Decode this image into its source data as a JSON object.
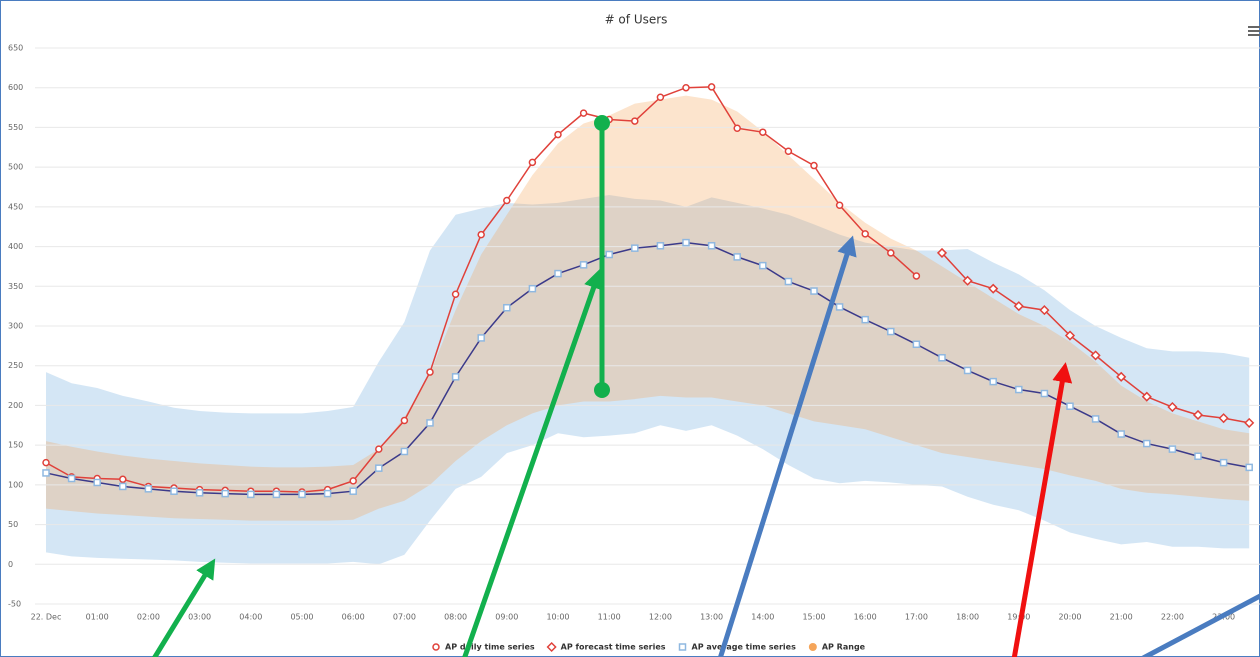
{
  "chart_data": {
    "type": "line",
    "title": "# of Users",
    "categories": [
      "22. Dec",
      null,
      "01:00",
      null,
      "02:00",
      null,
      "03:00",
      null,
      "04:00",
      null,
      "05:00",
      null,
      "06:00",
      null,
      "07:00",
      null,
      "08:00",
      null,
      "09:00",
      null,
      "10:00",
      null,
      "11:00",
      null,
      "12:00",
      null,
      "13:00",
      null,
      "14:00",
      null,
      "15:00",
      null,
      "16:00",
      null,
      "17:00",
      null,
      "18:00",
      null,
      "19:00",
      null,
      "20:00",
      null,
      "21:00",
      null,
      "22:00",
      null,
      "23:00",
      null
    ],
    "ylim": [
      -50,
      650
    ],
    "yticks": [
      -50,
      0,
      50,
      100,
      150,
      200,
      250,
      300,
      350,
      400,
      450,
      500,
      550,
      600,
      650
    ],
    "grid": true,
    "legend": "bottom",
    "series": [
      {
        "name": "AP daily time series",
        "color": "#e0413a",
        "marker": "circle",
        "values": [
          128,
          110,
          108,
          107,
          98,
          96,
          94,
          93,
          92,
          92,
          91,
          94,
          105,
          145,
          181,
          242,
          340,
          415,
          458,
          506,
          541,
          568,
          560,
          558,
          588,
          600,
          601,
          549,
          544,
          520,
          502,
          452,
          416,
          392,
          363,
          null,
          null,
          null,
          null,
          null,
          null,
          null,
          null,
          null,
          null,
          null,
          null,
          null
        ]
      },
      {
        "name": "AP forecast time series",
        "color": "#e0413a",
        "marker": "diamond",
        "values": [
          null,
          null,
          null,
          null,
          null,
          null,
          null,
          null,
          null,
          null,
          null,
          null,
          null,
          null,
          null,
          null,
          null,
          null,
          null,
          null,
          null,
          null,
          null,
          null,
          null,
          null,
          null,
          null,
          null,
          null,
          null,
          null,
          null,
          null,
          null,
          392,
          357,
          347,
          325,
          320,
          288,
          263,
          236,
          211,
          198,
          188,
          184,
          178
        ]
      },
      {
        "name": "AP average time series",
        "color": "#3b3a8a",
        "marker": "square",
        "marker_color": "#8fb8e0",
        "band_color": "#c5ddf2",
        "values": [
          115,
          108,
          103,
          98,
          95,
          92,
          90,
          89,
          88,
          88,
          88,
          89,
          92,
          121,
          142,
          178,
          236,
          285,
          323,
          347,
          366,
          377,
          390,
          398,
          401,
          405,
          401,
          387,
          376,
          356,
          344,
          324,
          308,
          293,
          277,
          260,
          244,
          230,
          220,
          215,
          199,
          183,
          164,
          152,
          145,
          136,
          128,
          122
        ],
        "band_low": [
          15,
          10,
          8,
          7,
          6,
          5,
          3,
          2,
          1,
          1,
          1,
          1,
          3,
          0,
          12,
          55,
          95,
          110,
          140,
          150,
          165,
          160,
          162,
          165,
          175,
          168,
          175,
          162,
          145,
          125,
          108,
          102,
          105,
          103,
          100,
          98,
          85,
          75,
          68,
          55,
          40,
          32,
          25,
          28,
          22,
          22,
          20,
          20
        ],
        "band_high": [
          242,
          228,
          222,
          212,
          205,
          197,
          193,
          191,
          190,
          190,
          190,
          193,
          198,
          255,
          305,
          395,
          440,
          448,
          455,
          453,
          455,
          460,
          465,
          460,
          458,
          450,
          462,
          455,
          448,
          440,
          428,
          415,
          405,
          400,
          395,
          395,
          397,
          380,
          365,
          345,
          320,
          300,
          285,
          272,
          268,
          268,
          266,
          260
        ]
      }
    ],
    "ranges": [
      {
        "name": "AP Range",
        "color": "#f5a55a",
        "low": [
          70,
          67,
          64,
          62,
          60,
          58,
          57,
          56,
          55,
          55,
          55,
          55,
          56,
          70,
          80,
          100,
          130,
          155,
          175,
          190,
          200,
          205,
          205,
          208,
          212,
          210,
          210,
          205,
          200,
          190,
          180,
          175,
          170,
          160,
          150,
          140,
          135,
          130,
          125,
          120,
          112,
          105,
          95,
          90,
          88,
          85,
          82,
          80
        ],
        "high": [
          155,
          148,
          142,
          137,
          133,
          130,
          127,
          125,
          123,
          122,
          122,
          123,
          125,
          145,
          185,
          240,
          320,
          390,
          440,
          490,
          530,
          555,
          565,
          580,
          585,
          590,
          585,
          570,
          545,
          515,
          485,
          455,
          430,
          410,
          395,
          375,
          355,
          335,
          315,
          300,
          280,
          255,
          225,
          205,
          190,
          180,
          170,
          165
        ]
      }
    ]
  }
}
